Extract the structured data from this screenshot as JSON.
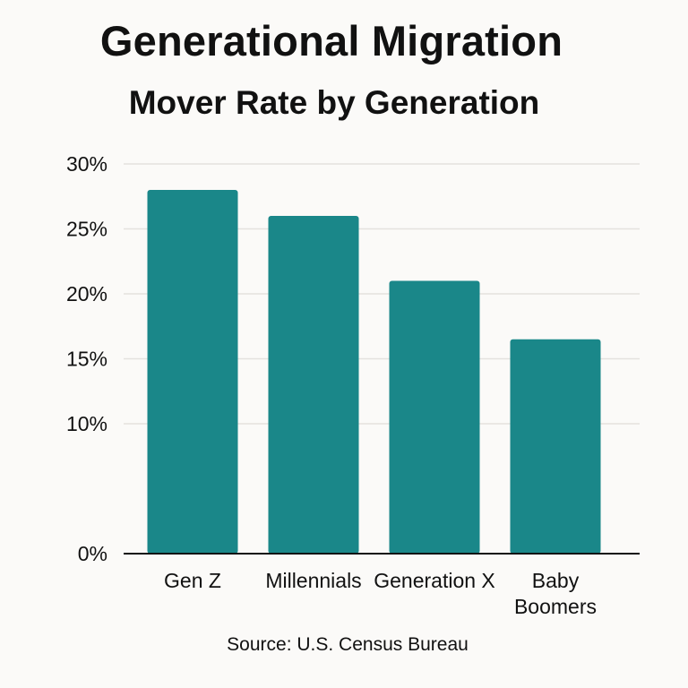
{
  "chart_data": {
    "type": "bar",
    "title": "Generational Migration",
    "subtitle": "Mover Rate by Generation",
    "categories": [
      [
        "Gen Z"
      ],
      [
        "Millennials"
      ],
      [
        "Generation X"
      ],
      [
        "Baby",
        "Boomers"
      ]
    ],
    "values": [
      28,
      26,
      21,
      16.5
    ],
    "ylim": [
      0,
      30
    ],
    "yticks": [
      0,
      10,
      15,
      20,
      25,
      30
    ],
    "ytick_labels": [
      "0%",
      "10%",
      "15%",
      "20%",
      "25%",
      "30%"
    ],
    "xlabel": "",
    "ylabel": "",
    "grid": true,
    "legend": "none",
    "bar_color": "#1a8789",
    "source": "Source: U.S. Census Bureau"
  }
}
